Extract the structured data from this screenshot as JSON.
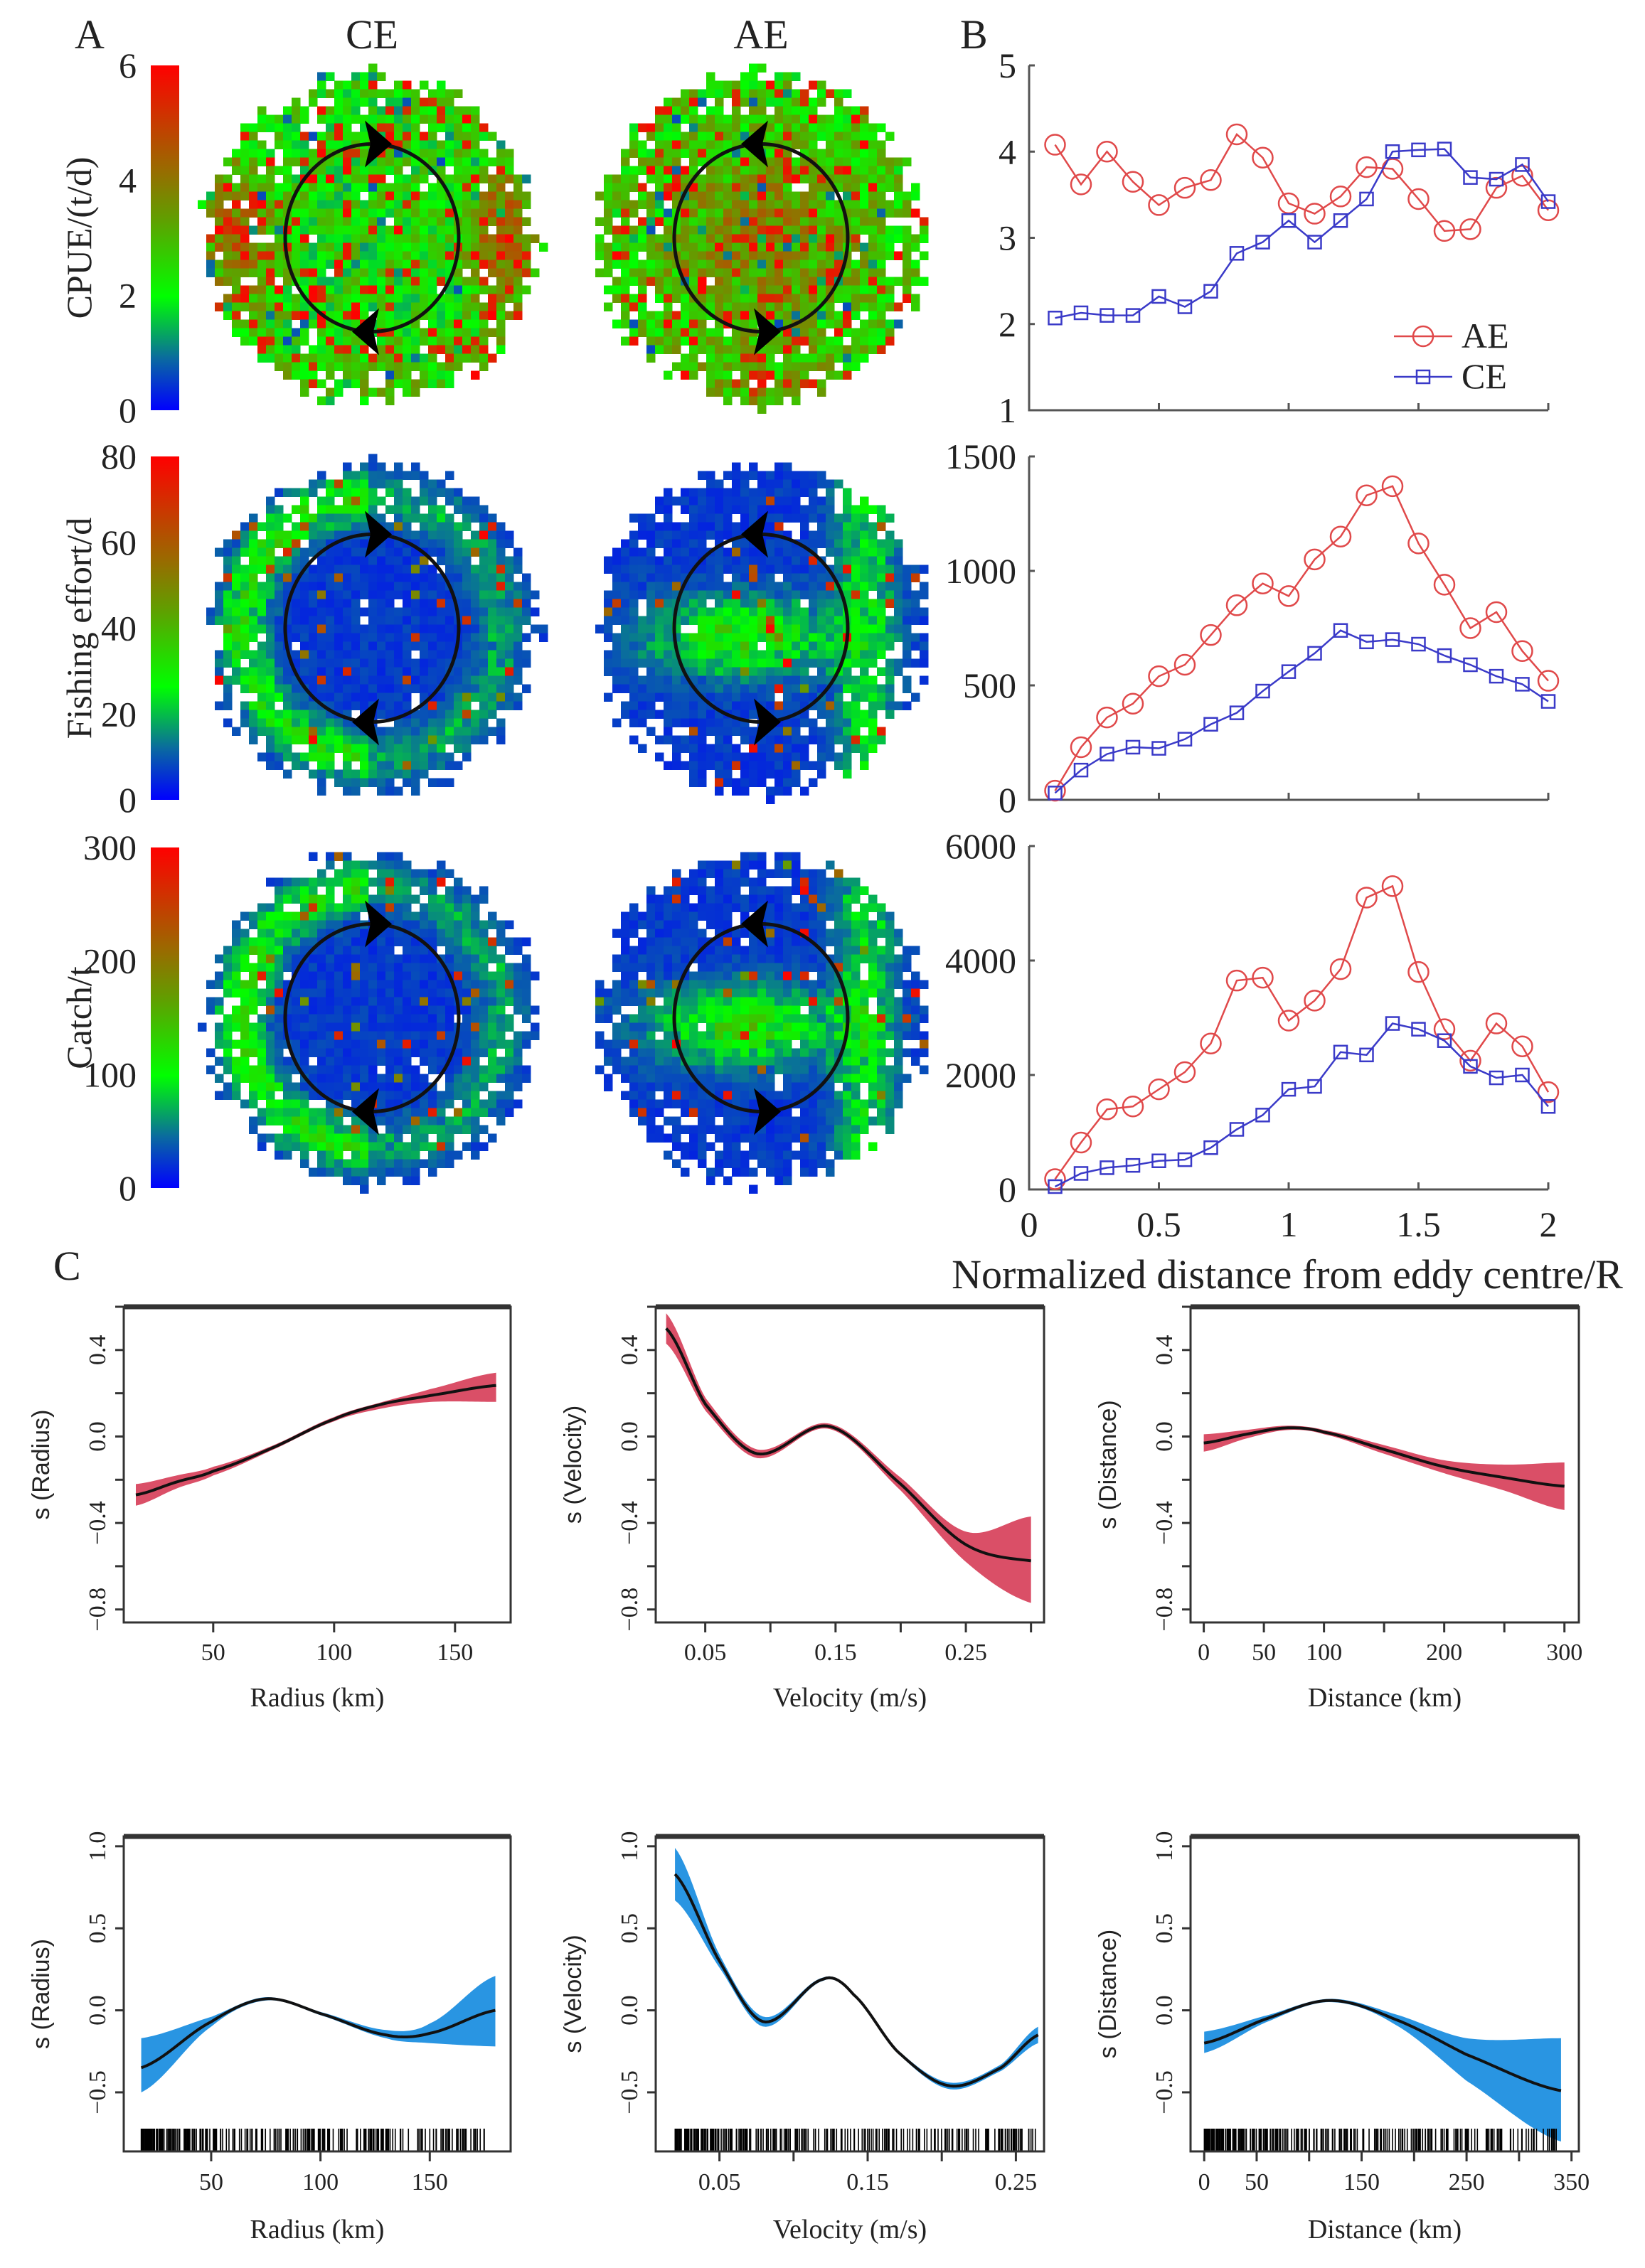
{
  "panel_labels": {
    "a": "A",
    "b": "B",
    "c": "C"
  },
  "chart_data": [
    {
      "type": "heatmap",
      "id": "A",
      "column_titles": [
        "CE",
        "AE"
      ],
      "colormap": [
        "#0000ff",
        "#0a6aa0",
        "#00ff00",
        "#5fa000",
        "#9a6a00",
        "#ff0000"
      ],
      "rows": [
        {
          "ylabel": "CPUE/(t/d)",
          "range": [
            0,
            6
          ],
          "ticks": [
            "0",
            "2",
            "4",
            "6"
          ],
          "arrows": {
            "CE": "clockwise",
            "AE": "anticlockwise"
          }
        },
        {
          "ylabel": "Fishing effort/d",
          "range": [
            0,
            80
          ],
          "ticks": [
            "0",
            "20",
            "40",
            "60",
            "80"
          ],
          "arrows": {
            "CE": "clockwise",
            "AE": "anticlockwise"
          }
        },
        {
          "ylabel": "Catch/t",
          "range": [
            0,
            300
          ],
          "ticks": [
            "0",
            "100",
            "200",
            "300"
          ],
          "arrows": {
            "CE": "clockwise",
            "AE": "anticlockwise"
          }
        }
      ]
    },
    {
      "type": "line",
      "id": "B",
      "x": [
        0.1,
        0.2,
        0.3,
        0.4,
        0.5,
        0.6,
        0.7,
        0.8,
        0.9,
        1.0,
        1.1,
        1.2,
        1.3,
        1.4,
        1.5,
        1.6,
        1.7,
        1.8,
        1.9,
        2.0
      ],
      "xlabel": "Normalized distance from eddy centre/R",
      "xlim": [
        0,
        2
      ],
      "xticks": [
        0,
        0.5,
        1,
        1.5,
        2
      ],
      "xtick_labels": [
        "0",
        "0.5",
        "1",
        "1.5",
        "2"
      ],
      "legend": {
        "placement": "right",
        "entries": [
          "AE",
          "CE"
        ]
      },
      "panels": [
        {
          "ylim": [
            1,
            5
          ],
          "yticks": [
            1,
            2,
            3,
            4,
            5
          ],
          "ytick_labels": [
            "1",
            "2",
            "3",
            "4",
            "5"
          ],
          "series": [
            {
              "name": "AE",
              "color": "#e0494a",
              "marker": "circle",
              "values": [
                4.08,
                3.62,
                4.0,
                3.65,
                3.38,
                3.58,
                3.67,
                4.2,
                3.93,
                3.4,
                3.28,
                3.48,
                3.82,
                3.8,
                3.45,
                3.08,
                3.1,
                3.58,
                3.72,
                3.32
              ]
            },
            {
              "name": "CE",
              "color": "#3a3ac8",
              "marker": "square",
              "values": [
                2.07,
                2.13,
                2.1,
                2.1,
                2.32,
                2.2,
                2.38,
                2.82,
                2.95,
                3.2,
                2.95,
                3.2,
                3.45,
                4.0,
                4.02,
                4.03,
                3.7,
                3.68,
                3.85,
                3.42
              ]
            }
          ]
        },
        {
          "ylim": [
            0,
            1500
          ],
          "yticks": [
            0,
            500,
            1000,
            1500
          ],
          "ytick_labels": [
            "0",
            "500",
            "1000",
            "1500"
          ],
          "series": [
            {
              "name": "AE",
              "color": "#e0494a",
              "marker": "circle",
              "values": [
                40,
                230,
                360,
                420,
                540,
                590,
                720,
                850,
                945,
                890,
                1050,
                1150,
                1330,
                1370,
                1120,
                940,
                750,
                820,
                650,
                520
              ]
            },
            {
              "name": "CE",
              "color": "#3a3ac8",
              "marker": "square",
              "values": [
                30,
                130,
                200,
                230,
                225,
                265,
                330,
                380,
                475,
                560,
                640,
                740,
                690,
                700,
                680,
                630,
                590,
                540,
                505,
                430
              ]
            }
          ]
        },
        {
          "ylim": [
            0,
            6000
          ],
          "yticks": [
            0,
            2000,
            4000,
            6000
          ],
          "ytick_labels": [
            "0",
            "2000",
            "4000",
            "6000"
          ],
          "series": [
            {
              "name": "AE",
              "color": "#e0494a",
              "marker": "circle",
              "values": [
                180,
                820,
                1400,
                1450,
                1750,
                2050,
                2550,
                3650,
                3700,
                2950,
                3300,
                3850,
                5100,
                5300,
                3800,
                2800,
                2250,
                2900,
                2500,
                1700
              ]
            },
            {
              "name": "CE",
              "color": "#3a3ac8",
              "marker": "square",
              "values": [
                50,
                280,
                380,
                420,
                500,
                520,
                730,
                1050,
                1300,
                1750,
                1800,
                2400,
                2350,
                2900,
                2800,
                2600,
                2150,
                1950,
                2000,
                1450
              ]
            }
          ]
        }
      ]
    },
    {
      "type": "line",
      "id": "C-row1",
      "band_color": "#d8465f",
      "rug": false,
      "ylim": [
        -0.86,
        0.6
      ],
      "yticks": [
        -0.8,
        -0.6,
        -0.4,
        -0.2,
        0,
        0.2,
        0.4,
        0.6
      ],
      "ytick_labels": [
        "−0.8",
        "",
        "−0.4",
        "",
        "0.0",
        "",
        "0.4",
        ""
      ],
      "plots": [
        {
          "xlabel": "Radius (km)",
          "ylabel": "s (Radius)",
          "xlim": [
            13,
            173
          ],
          "xticks": [
            50,
            100,
            150
          ],
          "xtick_labels": [
            "50",
            "100",
            "150"
          ],
          "x": [
            18,
            35,
            50,
            75,
            100,
            120,
            140,
            167
          ],
          "fit": [
            -0.27,
            -0.21,
            -0.16,
            -0.05,
            0.08,
            0.15,
            0.19,
            0.236
          ],
          "lower": [
            -0.32,
            -0.24,
            -0.18,
            -0.06,
            0.07,
            0.13,
            0.16,
            0.16
          ],
          "upper": [
            -0.22,
            -0.18,
            -0.14,
            -0.04,
            0.09,
            0.16,
            0.22,
            0.295
          ]
        },
        {
          "xlabel": "Velocity (m/s)",
          "ylabel": "s (Velocity)",
          "xlim": [
            0.012,
            0.31
          ],
          "xticks": [
            0.05,
            0.1,
            0.15,
            0.2,
            0.25,
            0.3
          ],
          "xtick_labels": [
            "0.05",
            "",
            "0.15",
            "",
            "0.25",
            ""
          ],
          "x": [
            0.02,
            0.05,
            0.09,
            0.145,
            0.2,
            0.25,
            0.3
          ],
          "fit": [
            0.5,
            0.15,
            -0.08,
            0.047,
            -0.22,
            -0.5,
            -0.575
          ],
          "lower": [
            0.43,
            0.12,
            -0.1,
            0.035,
            -0.25,
            -0.58,
            -0.77
          ],
          "upper": [
            0.57,
            0.18,
            -0.06,
            0.06,
            -0.19,
            -0.44,
            -0.37
          ]
        },
        {
          "xlabel": "Distance (km)",
          "ylabel": "s (Distance)",
          "xlim": [
            -11,
            312
          ],
          "xticks": [
            0,
            50,
            100,
            150,
            200,
            250,
            300
          ],
          "xtick_labels": [
            "0",
            "50",
            "100",
            "",
            "200",
            "",
            "300"
          ],
          "x": [
            0,
            35,
            70,
            100,
            150,
            200,
            250,
            300
          ],
          "fit": [
            -0.03,
            0.01,
            0.04,
            0.02,
            -0.06,
            -0.14,
            -0.19,
            -0.23
          ],
          "lower": [
            -0.07,
            -0.01,
            0.03,
            0.01,
            -0.08,
            -0.17,
            -0.25,
            -0.34
          ],
          "upper": [
            0.01,
            0.03,
            0.05,
            0.03,
            -0.04,
            -0.11,
            -0.13,
            -0.12
          ]
        }
      ]
    },
    {
      "type": "line",
      "id": "C-row2",
      "band_color": "#1e8fe0",
      "rug": true,
      "ylim": [
        -0.86,
        1.06
      ],
      "yticks": [
        -0.5,
        0,
        0.5,
        1.0
      ],
      "ytick_labels": [
        "−0.5",
        "0.0",
        "0.5",
        "1.0"
      ],
      "plots": [
        {
          "xlabel": "Radius (km)",
          "ylabel": "s (Radius)",
          "xlim": [
            10,
            187
          ],
          "xticks": [
            50,
            100,
            150
          ],
          "xtick_labels": [
            "50",
            "100",
            "150"
          ],
          "x": [
            18,
            50,
            75,
            100,
            130,
            150,
            180
          ],
          "fit": [
            -0.35,
            -0.07,
            0.07,
            -0.02,
            -0.15,
            -0.14,
            0.0
          ],
          "lower": [
            -0.5,
            -0.1,
            0.06,
            -0.03,
            -0.17,
            -0.2,
            -0.22
          ],
          "upper": [
            -0.17,
            -0.04,
            0.08,
            -0.01,
            -0.12,
            -0.08,
            0.21
          ]
        },
        {
          "xlabel": "Velocity (m/s)",
          "ylabel": "s (Velocity)",
          "xlim": [
            0.007,
            0.269
          ],
          "xticks": [
            0.05,
            0.1,
            0.15,
            0.2,
            0.25
          ],
          "xtick_labels": [
            "0.05",
            "",
            "0.15",
            "",
            "0.25"
          ],
          "x": [
            0.02,
            0.05,
            0.08,
            0.12,
            0.14,
            0.17,
            0.205,
            0.24,
            0.265
          ],
          "fit": [
            0.83,
            0.3,
            -0.07,
            0.19,
            0.1,
            -0.25,
            -0.46,
            -0.35,
            -0.15
          ],
          "lower": [
            0.67,
            0.26,
            -0.1,
            0.18,
            0.09,
            -0.26,
            -0.48,
            -0.37,
            -0.2
          ],
          "upper": [
            0.99,
            0.34,
            -0.04,
            0.2,
            0.11,
            -0.24,
            -0.44,
            -0.33,
            -0.1
          ]
        },
        {
          "xlabel": "Distance (km)",
          "ylabel": "s (Distance)",
          "xlim": [
            -13,
            357
          ],
          "xticks": [
            0,
            50,
            100,
            150,
            200,
            250,
            300,
            350
          ],
          "xtick_labels": [
            "0",
            "50",
            "",
            "150",
            "",
            "250",
            "",
            "350"
          ],
          "x": [
            0,
            60,
            120,
            180,
            250,
            340
          ],
          "fit": [
            -0.2,
            -0.05,
            0.06,
            -0.05,
            -0.27,
            -0.49
          ],
          "lower": [
            -0.26,
            -0.07,
            0.05,
            -0.08,
            -0.43,
            -0.8
          ],
          "upper": [
            -0.13,
            -0.03,
            0.07,
            -0.02,
            -0.17,
            -0.17
          ]
        }
      ]
    }
  ]
}
